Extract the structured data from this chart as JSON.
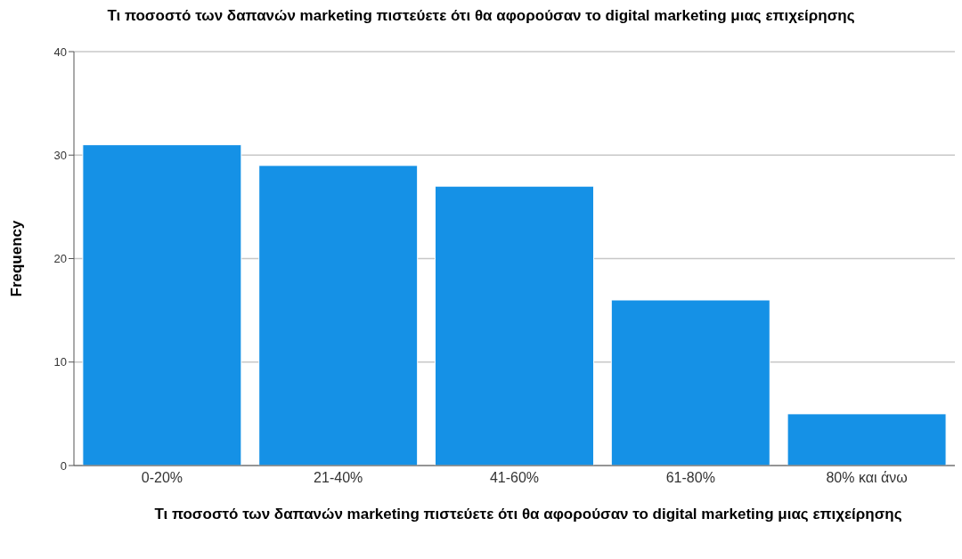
{
  "chart_data": {
    "type": "bar",
    "title": "Τι ποσοστό των δαπανών marketing πιστεύετε ότι θα αφορούσαν το digital marketing μιας επιχείρησης",
    "xlabel": "Τι ποσοστό των δαπανών marketing πιστεύετε ότι θα αφορούσαν το digital marketing μιας επιχείρησης",
    "ylabel": "Frequency",
    "categories": [
      "0-20%",
      "21-40%",
      "41-60%",
      "61-80%",
      "80% και άνω"
    ],
    "values": [
      31,
      29,
      27,
      16,
      5
    ],
    "color": "#1591e6",
    "ylim": [
      0,
      40
    ],
    "yticks": [
      0,
      10,
      20,
      30,
      40
    ],
    "grid": "y"
  }
}
